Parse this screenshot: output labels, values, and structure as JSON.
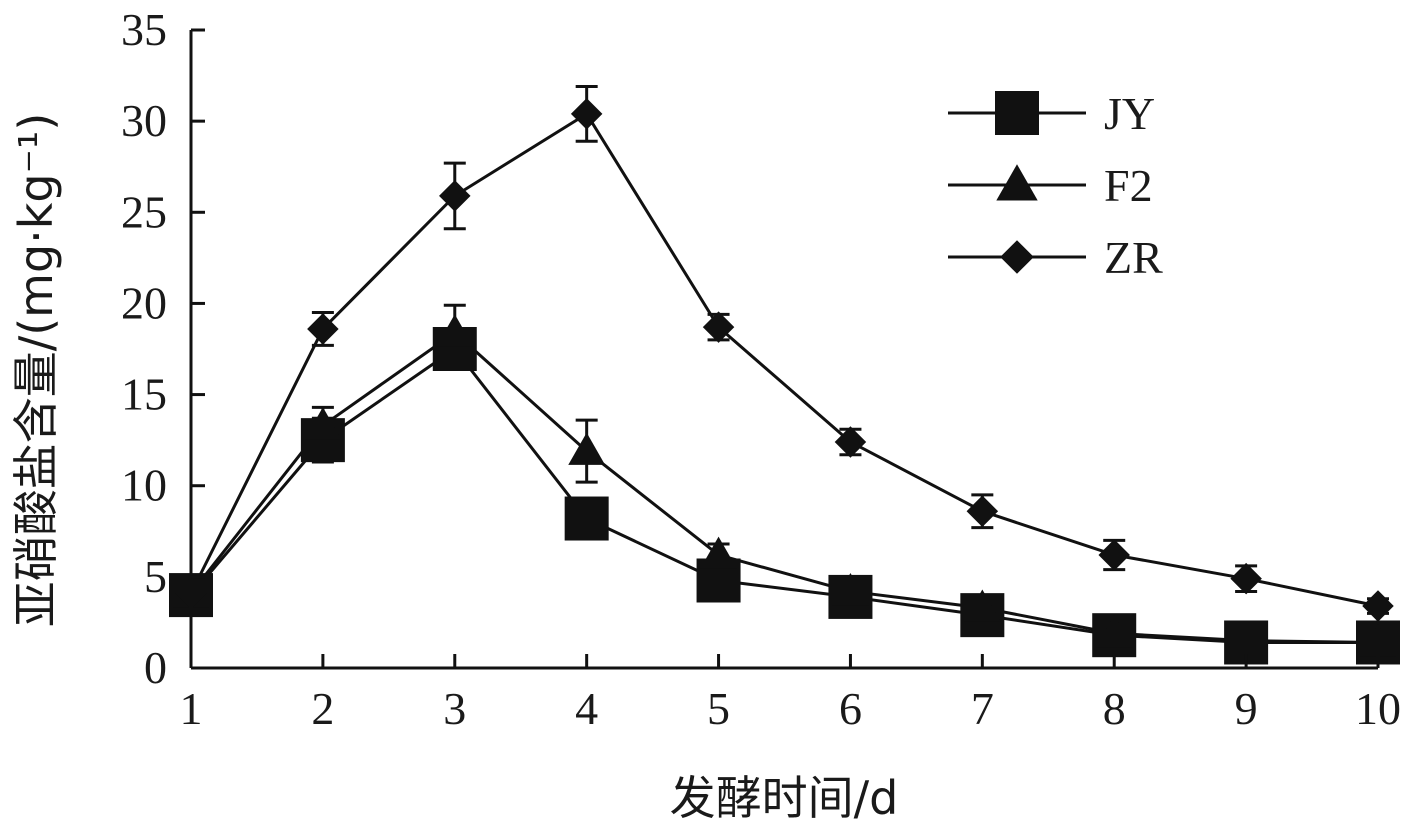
{
  "chart_data": {
    "type": "line",
    "title": "",
    "xlabel": "发酵时间/d",
    "ylabel": "亚硝酸盐含量/(mg·kg⁻¹)",
    "x": [
      1,
      2,
      3,
      4,
      5,
      6,
      7,
      8,
      9,
      10
    ],
    "xlim": [
      1,
      10
    ],
    "ylim": [
      0,
      35
    ],
    "yticks": [
      0,
      5,
      10,
      15,
      20,
      25,
      30,
      35
    ],
    "grid": false,
    "legend_position": "top-right",
    "series": [
      {
        "name": "JY",
        "marker": "square",
        "values": [
          4.0,
          12.5,
          17.5,
          8.2,
          4.8,
          3.9,
          2.9,
          1.8,
          1.4,
          1.4
        ],
        "errors": [
          0.5,
          1.2,
          1.0,
          0.6,
          0.8,
          0.4,
          0.5,
          0.3,
          0.2,
          0.2
        ]
      },
      {
        "name": "F2",
        "marker": "triangle",
        "values": [
          4.1,
          13.3,
          18.4,
          11.9,
          6.2,
          4.2,
          3.3,
          1.9,
          1.5,
          1.4
        ],
        "errors": [
          0.5,
          1.0,
          1.5,
          1.7,
          0.6,
          0.4,
          0.4,
          0.3,
          0.2,
          0.2
        ]
      },
      {
        "name": "ZR",
        "marker": "diamond",
        "values": [
          4.1,
          18.6,
          25.9,
          30.4,
          18.7,
          12.4,
          8.6,
          6.2,
          4.9,
          3.4
        ],
        "errors": [
          0.5,
          0.9,
          1.8,
          1.5,
          0.7,
          0.7,
          0.9,
          0.8,
          0.7,
          0.4
        ]
      }
    ]
  }
}
